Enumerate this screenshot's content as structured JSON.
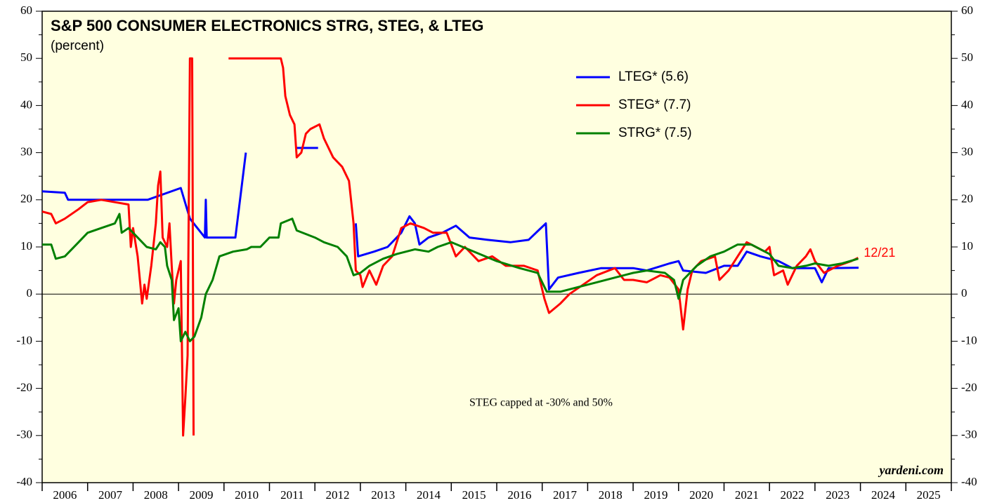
{
  "chart_data": {
    "type": "line",
    "title": "S&P 500 CONSUMER ELECTRONICS STRG, STEG, & LTEG",
    "subtitle": "(percent)",
    "annotation": "STEG capped at -30% and 50%",
    "date_label": "12/21",
    "source": "yardeni.com",
    "xlim": [
      2006,
      2026
    ],
    "xticks": [
      2006,
      2007,
      2008,
      2009,
      2010,
      2011,
      2012,
      2013,
      2014,
      2015,
      2016,
      2017,
      2018,
      2019,
      2020,
      2021,
      2022,
      2023,
      2024,
      2025
    ],
    "ylim": [
      -40,
      60
    ],
    "yticks": [
      -40,
      -30,
      -20,
      -10,
      0,
      10,
      20,
      30,
      40,
      50,
      60
    ],
    "series": [
      {
        "name": "LTEG* (5.6)",
        "color": "#0000ff",
        "x": [
          2006.0,
          2006.5,
          2006.57,
          2008.32,
          2009.05,
          2009.25,
          2009.58,
          2009.6,
          2009.62,
          2010.25,
          2010.48,
          2011.0,
          2011.6,
          2012.07,
          2012.5,
          2012.9,
          2012.95,
          2013.3,
          2013.6,
          2013.9,
          2014.08,
          2014.2,
          2014.3,
          2014.5,
          2014.8,
          2015.1,
          2015.4,
          2015.8,
          2016.3,
          2016.7,
          2017.08,
          2017.15,
          2017.35,
          2017.8,
          2018.3,
          2019.0,
          2019.3,
          2019.8,
          2020.0,
          2020.1,
          2020.6,
          2021.0,
          2021.3,
          2021.5,
          2021.8,
          2022.2,
          2022.5,
          2023.0,
          2023.15,
          2023.3,
          2023.96
        ],
        "values": [
          21.8,
          21.5,
          20,
          20,
          22.5,
          16,
          12,
          20,
          12,
          12,
          30,
          null,
          31,
          31,
          null,
          15,
          8,
          9,
          10,
          13,
          16.5,
          15,
          10.5,
          12,
          13,
          14.5,
          12,
          11.5,
          11,
          11.5,
          15,
          1,
          3.5,
          4.5,
          5.5,
          5.5,
          5,
          6.5,
          7,
          5,
          4.5,
          6,
          6,
          9,
          8,
          7,
          5.5,
          5.5,
          2.5,
          5.5,
          5.6
        ]
      },
      {
        "name": "STEG* (7.7)",
        "color": "#ff0000",
        "x": [
          2006.0,
          2006.2,
          2006.3,
          2006.5,
          2006.8,
          2007.0,
          2007.3,
          2007.6,
          2007.9,
          2007.95,
          2008.0,
          2008.1,
          2008.2,
          2008.25,
          2008.3,
          2008.4,
          2008.5,
          2008.55,
          2008.6,
          2008.65,
          2008.75,
          2008.8,
          2008.85,
          2008.9,
          2008.95,
          2009.05,
          2009.1,
          2009.15,
          2009.2,
          2009.25,
          2009.3,
          2009.33,
          2009.7,
          2010.1,
          2011.25,
          2011.3,
          2011.35,
          2011.45,
          2011.55,
          2011.6,
          2011.7,
          2011.8,
          2011.9,
          2012.1,
          2012.2,
          2012.4,
          2012.6,
          2012.75,
          2012.85,
          2012.9,
          2013.0,
          2013.05,
          2013.2,
          2013.35,
          2013.5,
          2013.7,
          2013.9,
          2014.1,
          2014.4,
          2014.6,
          2014.9,
          2015.1,
          2015.3,
          2015.6,
          2015.9,
          2016.2,
          2016.6,
          2016.9,
          2017.05,
          2017.15,
          2017.4,
          2017.6,
          2017.9,
          2018.2,
          2018.6,
          2018.8,
          2019.0,
          2019.3,
          2019.6,
          2019.8,
          2020.0,
          2020.1,
          2020.2,
          2020.3,
          2020.5,
          2020.8,
          2020.9,
          2021.1,
          2021.3,
          2021.5,
          2021.7,
          2021.9,
          2022.0,
          2022.1,
          2022.3,
          2022.4,
          2022.6,
          2022.8,
          2022.9,
          2023.0,
          2023.2,
          2023.5,
          2023.8,
          2023.95
        ],
        "values": [
          17.5,
          17,
          15,
          16,
          18,
          19.5,
          20,
          19.5,
          19,
          10,
          14,
          8,
          -2,
          2,
          -1,
          6,
          15,
          23,
          26,
          12,
          10,
          15,
          6,
          -2,
          3,
          7,
          -30,
          -22,
          -13,
          50,
          50,
          -30,
          null,
          50,
          50,
          48,
          42,
          38,
          36,
          29,
          30,
          34,
          35,
          36,
          33,
          29,
          27,
          24,
          15,
          5,
          4,
          1.5,
          5,
          2,
          6,
          8,
          14,
          15,
          14,
          13,
          13,
          8,
          10,
          7,
          8,
          6,
          6,
          5,
          -1,
          -4,
          -2,
          0,
          2,
          4,
          5.5,
          3,
          3,
          2.5,
          4,
          3.5,
          1,
          -7.5,
          1,
          5,
          7,
          8,
          3,
          5,
          8,
          11,
          10,
          9,
          10,
          4,
          5,
          2,
          6,
          8,
          9.5,
          7,
          4.5,
          6,
          7,
          7.7
        ]
      },
      {
        "name": "STRG* (7.5)",
        "color": "#008000",
        "x": [
          2006.0,
          2006.2,
          2006.3,
          2006.5,
          2006.8,
          2007.0,
          2007.3,
          2007.6,
          2007.7,
          2007.75,
          2007.9,
          2008.1,
          2008.3,
          2008.5,
          2008.6,
          2008.7,
          2008.75,
          2008.85,
          2008.9,
          2009.0,
          2009.05,
          2009.15,
          2009.25,
          2009.35,
          2009.5,
          2009.6,
          2009.75,
          2009.9,
          2010.2,
          2010.5,
          2010.6,
          2010.8,
          2011.0,
          2011.2,
          2011.25,
          2011.5,
          2011.6,
          2012.0,
          2012.2,
          2012.5,
          2012.7,
          2012.85,
          2013.0,
          2013.2,
          2013.5,
          2013.8,
          2014.2,
          2014.5,
          2014.7,
          2015.0,
          2015.5,
          2016.0,
          2016.5,
          2016.9,
          2017.1,
          2017.4,
          2017.8,
          2018.2,
          2018.6,
          2019.0,
          2019.3,
          2019.7,
          2019.9,
          2020.0,
          2020.1,
          2020.4,
          2020.7,
          2021.0,
          2021.3,
          2021.6,
          2022.0,
          2022.2,
          2022.5,
          2022.8,
          2023.0,
          2023.3,
          2023.6,
          2023.95
        ],
        "values": [
          10.5,
          10.5,
          7.5,
          8,
          11,
          13,
          14,
          15,
          17,
          13,
          14,
          12,
          10,
          9.5,
          11,
          10,
          6,
          3,
          -5.5,
          -3,
          -10,
          -8,
          -10,
          -9,
          -5,
          0,
          3,
          8,
          9,
          9.5,
          10,
          10,
          12,
          12,
          15,
          16,
          13.5,
          12,
          11,
          10,
          8,
          4,
          4.5,
          6,
          7.5,
          8.5,
          9.5,
          9,
          10,
          11,
          9,
          7,
          5.5,
          4.5,
          0.5,
          0.5,
          1.5,
          2.5,
          3.5,
          4.5,
          5,
          4.5,
          3,
          -1,
          3,
          6,
          8,
          9,
          10.5,
          10.5,
          8.5,
          6,
          5.5,
          6,
          6.5,
          6,
          6.5,
          7.5
        ]
      }
    ]
  }
}
